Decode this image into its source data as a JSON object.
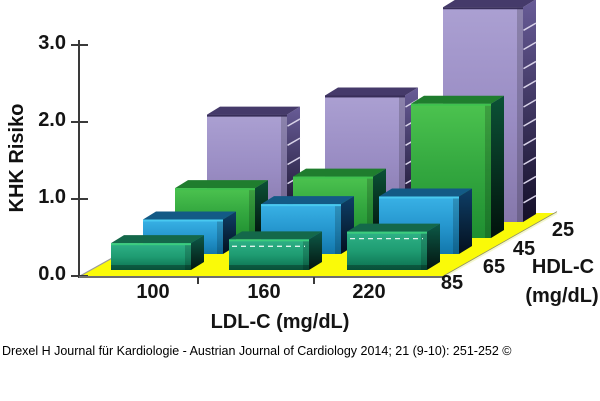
{
  "caption": {
    "text": "Drexel H Journal für Kardiologie - Austrian Journal of Cardiology 2014; 21 (9-10): 251-252 ©"
  },
  "axes": {
    "y_title": "KHK Risiko",
    "x_title": "LDL-C (mg/dL)",
    "z_title_line1": "HDL-C",
    "z_title_line2": "(mg/dL)",
    "y_ticks": [
      "3.0",
      "2.0",
      "1.0",
      "0.0"
    ],
    "x_ticks": [
      "100",
      "160",
      "220"
    ],
    "z_ticks": [
      "85",
      "65",
      "45",
      "25"
    ]
  },
  "chart_data": {
    "type": "bar",
    "subtype": "3d-columns",
    "title": "",
    "xlabel": "LDL-C (mg/dL)",
    "ylabel": "KHK Risiko",
    "zlabel": "HDL-C (mg/dL)",
    "categories": [
      "100",
      "160",
      "220"
    ],
    "series": [
      {
        "name": "HDL-C 85",
        "color_key": "teal",
        "values": [
          0.35,
          0.4,
          0.5
        ]
      },
      {
        "name": "HDL-C 65",
        "color_key": "blue",
        "values": [
          0.45,
          0.65,
          0.75
        ]
      },
      {
        "name": "HDL-C 45",
        "color_key": "green",
        "values": [
          0.65,
          0.8,
          1.75
        ]
      },
      {
        "name": "HDL-C 25",
        "color_key": "purple",
        "values": [
          1.4,
          1.65,
          2.8
        ]
      }
    ],
    "ylim": [
      0.0,
      3.0
    ],
    "y_tick_step": 1.0,
    "grid": "side-face-stripes-on-back-series",
    "legend": "none"
  },
  "colors": {
    "background": "#ffffff",
    "floor": "#fafa08",
    "floor_edge_light": "#f4f7cf",
    "floor_edge_dark": "#8e8e6a",
    "axis_line": "#3a3a3a",
    "front_edge": "#6e6e6e",
    "text": "#141414",
    "series": {
      "teal": {
        "front": [
          "#2fb287",
          "#1f9c72",
          "#0b6f4f"
        ],
        "top": "#14684a",
        "side": [
          "#0d5a48",
          "#03140f"
        ],
        "edge": "#3bcd7e"
      },
      "blue": {
        "front": [
          "#39b2e6",
          "#2697cf",
          "#1277ab"
        ],
        "top": "#135a86",
        "side": [
          "#0e3f68",
          "#04101e"
        ],
        "edge": "#49c9f0"
      },
      "green": {
        "front": [
          "#4cc34f",
          "#33a73f",
          "#1f8f31"
        ],
        "top": "#1f7d2e",
        "side": [
          "#0b5236",
          "#02120c"
        ],
        "edge": "#3ec14e"
      },
      "purple": {
        "front": [
          "#aba0d2",
          "#9a8dc4",
          "#8678ab"
        ],
        "top": "#453a6a",
        "side": [
          "#685c97",
          "#140f28"
        ],
        "edge": "#382e59"
      }
    },
    "stripe": "#d8d2e8",
    "dashed_stripe": "#ffffff"
  }
}
